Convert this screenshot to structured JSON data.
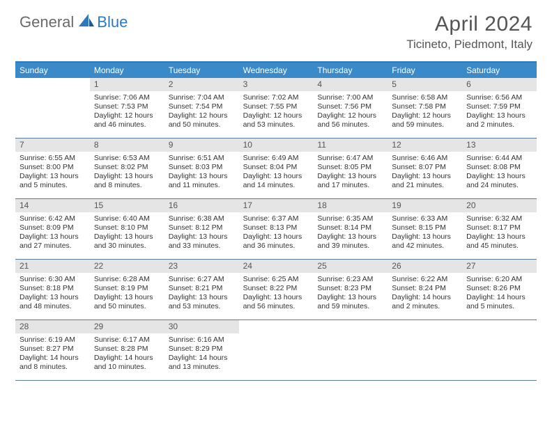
{
  "logo": {
    "general": "General",
    "blue": "Blue"
  },
  "title": "April 2024",
  "location": "Ticineto, Piedmont, Italy",
  "colors": {
    "header_bg": "#3a8ac9",
    "header_border": "#2f78bd",
    "daynum_bg": "#e5e5e5",
    "row_border": "#5a7a95",
    "text": "#333333",
    "logo_gray": "#6a6a6a",
    "logo_blue": "#2f78bd"
  },
  "day_headers": [
    "Sunday",
    "Monday",
    "Tuesday",
    "Wednesday",
    "Thursday",
    "Friday",
    "Saturday"
  ],
  "weeks": [
    [
      {
        "blank": true
      },
      {
        "n": "1",
        "sr": "7:06 AM",
        "ss": "7:53 PM",
        "dl": "12 hours and 46 minutes."
      },
      {
        "n": "2",
        "sr": "7:04 AM",
        "ss": "7:54 PM",
        "dl": "12 hours and 50 minutes."
      },
      {
        "n": "3",
        "sr": "7:02 AM",
        "ss": "7:55 PM",
        "dl": "12 hours and 53 minutes."
      },
      {
        "n": "4",
        "sr": "7:00 AM",
        "ss": "7:56 PM",
        "dl": "12 hours and 56 minutes."
      },
      {
        "n": "5",
        "sr": "6:58 AM",
        "ss": "7:58 PM",
        "dl": "12 hours and 59 minutes."
      },
      {
        "n": "6",
        "sr": "6:56 AM",
        "ss": "7:59 PM",
        "dl": "13 hours and 2 minutes."
      }
    ],
    [
      {
        "n": "7",
        "sr": "6:55 AM",
        "ss": "8:00 PM",
        "dl": "13 hours and 5 minutes."
      },
      {
        "n": "8",
        "sr": "6:53 AM",
        "ss": "8:02 PM",
        "dl": "13 hours and 8 minutes."
      },
      {
        "n": "9",
        "sr": "6:51 AM",
        "ss": "8:03 PM",
        "dl": "13 hours and 11 minutes."
      },
      {
        "n": "10",
        "sr": "6:49 AM",
        "ss": "8:04 PM",
        "dl": "13 hours and 14 minutes."
      },
      {
        "n": "11",
        "sr": "6:47 AM",
        "ss": "8:05 PM",
        "dl": "13 hours and 17 minutes."
      },
      {
        "n": "12",
        "sr": "6:46 AM",
        "ss": "8:07 PM",
        "dl": "13 hours and 21 minutes."
      },
      {
        "n": "13",
        "sr": "6:44 AM",
        "ss": "8:08 PM",
        "dl": "13 hours and 24 minutes."
      }
    ],
    [
      {
        "n": "14",
        "sr": "6:42 AM",
        "ss": "8:09 PM",
        "dl": "13 hours and 27 minutes."
      },
      {
        "n": "15",
        "sr": "6:40 AM",
        "ss": "8:10 PM",
        "dl": "13 hours and 30 minutes."
      },
      {
        "n": "16",
        "sr": "6:38 AM",
        "ss": "8:12 PM",
        "dl": "13 hours and 33 minutes."
      },
      {
        "n": "17",
        "sr": "6:37 AM",
        "ss": "8:13 PM",
        "dl": "13 hours and 36 minutes."
      },
      {
        "n": "18",
        "sr": "6:35 AM",
        "ss": "8:14 PM",
        "dl": "13 hours and 39 minutes."
      },
      {
        "n": "19",
        "sr": "6:33 AM",
        "ss": "8:15 PM",
        "dl": "13 hours and 42 minutes."
      },
      {
        "n": "20",
        "sr": "6:32 AM",
        "ss": "8:17 PM",
        "dl": "13 hours and 45 minutes."
      }
    ],
    [
      {
        "n": "21",
        "sr": "6:30 AM",
        "ss": "8:18 PM",
        "dl": "13 hours and 48 minutes."
      },
      {
        "n": "22",
        "sr": "6:28 AM",
        "ss": "8:19 PM",
        "dl": "13 hours and 50 minutes."
      },
      {
        "n": "23",
        "sr": "6:27 AM",
        "ss": "8:21 PM",
        "dl": "13 hours and 53 minutes."
      },
      {
        "n": "24",
        "sr": "6:25 AM",
        "ss": "8:22 PM",
        "dl": "13 hours and 56 minutes."
      },
      {
        "n": "25",
        "sr": "6:23 AM",
        "ss": "8:23 PM",
        "dl": "13 hours and 59 minutes."
      },
      {
        "n": "26",
        "sr": "6:22 AM",
        "ss": "8:24 PM",
        "dl": "14 hours and 2 minutes."
      },
      {
        "n": "27",
        "sr": "6:20 AM",
        "ss": "8:26 PM",
        "dl": "14 hours and 5 minutes."
      }
    ],
    [
      {
        "n": "28",
        "sr": "6:19 AM",
        "ss": "8:27 PM",
        "dl": "14 hours and 8 minutes."
      },
      {
        "n": "29",
        "sr": "6:17 AM",
        "ss": "8:28 PM",
        "dl": "14 hours and 10 minutes."
      },
      {
        "n": "30",
        "sr": "6:16 AM",
        "ss": "8:29 PM",
        "dl": "14 hours and 13 minutes."
      },
      {
        "blank": true
      },
      {
        "blank": true
      },
      {
        "blank": true
      },
      {
        "blank": true
      }
    ]
  ],
  "labels": {
    "sunrise": "Sunrise: ",
    "sunset": "Sunset: ",
    "daylight": "Daylight: "
  }
}
